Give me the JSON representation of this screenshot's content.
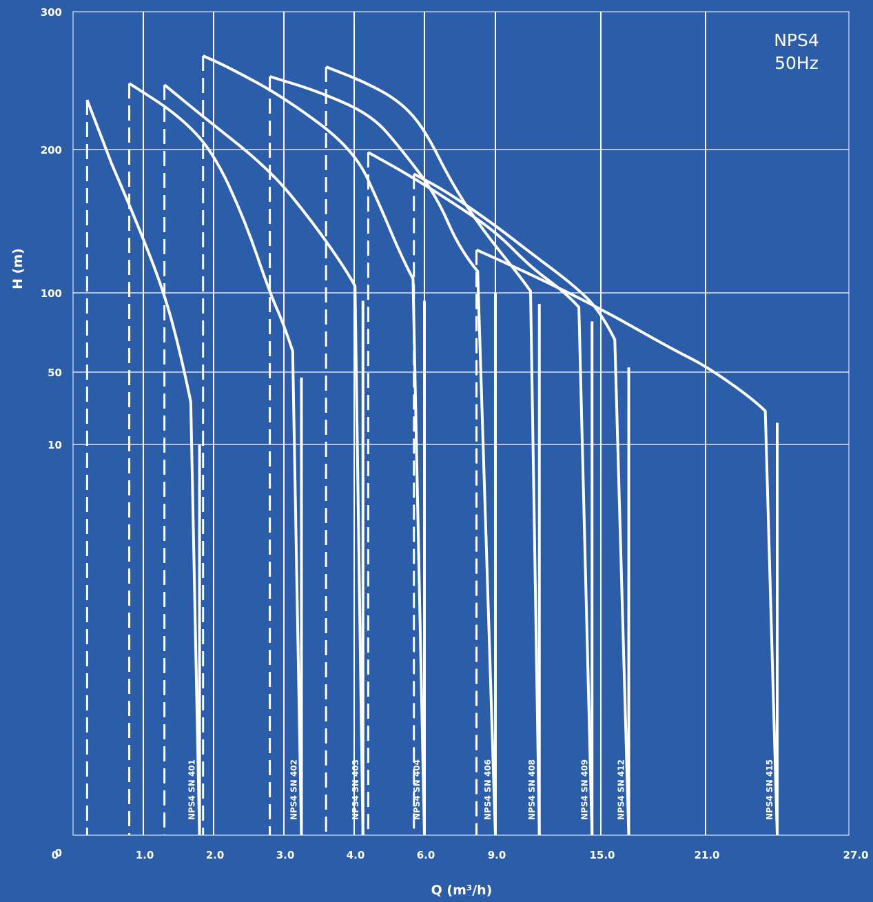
{
  "chart_data": {
    "type": "line",
    "title": "NPS4",
    "subtitle": "50Hz",
    "xlabel": "Q (m³/h)",
    "ylabel": "H (m)",
    "x_ticks": [
      "0",
      "1.0",
      "2.0",
      "3.0",
      "4.0",
      "6.0",
      "9.0",
      "15.0",
      "21.0",
      "27.0"
    ],
    "y_ticks": [
      "0",
      "10",
      "50",
      "100",
      "200",
      "300"
    ],
    "grid": true,
    "colors": {
      "background": "#2c5da9",
      "line": "#ffffff",
      "grid": "#ffffff"
    },
    "series": [
      {
        "name": "NPS4 SN 401",
        "q_range": [
          0.2,
          1.8
        ],
        "points": [
          [
            0.2,
            236
          ],
          [
            0.55,
            190
          ],
          [
            0.55,
            190
          ],
          [
            0.9,
            150
          ],
          [
            1.3,
            100
          ],
          [
            1.55,
            58
          ],
          [
            1.8,
            10
          ],
          [
            1.8,
            0
          ]
        ]
      },
      {
        "name": "NPS4 SN 402",
        "q_range": [
          0.8,
          3.25
        ],
        "points": [
          [
            0.8,
            248
          ],
          [
            1.5,
            225
          ],
          [
            2.0,
            198
          ],
          [
            2.45,
            150
          ],
          [
            2.8,
            100
          ],
          [
            3.0,
            80
          ],
          [
            3.25,
            47
          ],
          [
            3.25,
            0
          ]
        ]
      },
      {
        "name": "NPS4 SN 403",
        "q_range": [
          1.3,
          4.25
        ],
        "points": [
          [
            1.3,
            247
          ],
          [
            1.8,
            226
          ],
          [
            2.8,
            186
          ],
          [
            3.4,
            150
          ],
          [
            3.9,
            115
          ],
          [
            4.25,
            95
          ],
          [
            4.25,
            0
          ]
        ]
      },
      {
        "name": "NPS4 SN 404",
        "q_range": [
          1.85,
          6.0
        ],
        "points": [
          [
            1.85,
            268
          ],
          [
            2.2,
            260
          ],
          [
            3.0,
            238
          ],
          [
            4.0,
            200
          ],
          [
            4.75,
            160
          ],
          [
            5.35,
            125
          ],
          [
            6.0,
            95
          ],
          [
            6.0,
            0
          ]
        ]
      },
      {
        "name": "NPS4 SN 406",
        "q_range": [
          2.8,
          9.0
        ],
        "points": [
          [
            2.8,
            253
          ],
          [
            3.5,
            242
          ],
          [
            4.5,
            225
          ],
          [
            5.35,
            200
          ],
          [
            6.5,
            168
          ],
          [
            7.5,
            130
          ],
          [
            9.0,
            100
          ],
          [
            9.0,
            0
          ]
        ]
      },
      {
        "name": "NPS4 SN 408",
        "q_range": [
          3.6,
          11.5
        ],
        "points": [
          [
            3.6,
            260
          ],
          [
            4.3,
            249
          ],
          [
            5.3,
            235
          ],
          [
            6.0,
            215
          ],
          [
            7.2,
            175
          ],
          [
            8.5,
            143
          ],
          [
            10.5,
            110
          ],
          [
            11.5,
            93
          ],
          [
            11.5,
            0
          ]
        ]
      },
      {
        "name": "NPS4 SN 409",
        "q_range": [
          4.4,
          14.5
        ],
        "points": [
          [
            4.4,
            198
          ],
          [
            5.5,
            183
          ],
          [
            7.0,
            165
          ],
          [
            9.0,
            143
          ],
          [
            11.0,
            118
          ],
          [
            13.0,
            100
          ],
          [
            14.5,
            82
          ],
          [
            14.5,
            0
          ]
        ]
      },
      {
        "name": "NPS4 SN 412",
        "q_range": [
          5.7,
          16.6
        ],
        "points": [
          [
            5.7,
            183
          ],
          [
            7.0,
            170
          ],
          [
            9.0,
            147
          ],
          [
            11.0,
            128
          ],
          [
            13.5,
            105
          ],
          [
            15.0,
            88
          ],
          [
            16.6,
            53
          ],
          [
            16.6,
            0
          ]
        ]
      },
      {
        "name": "NPS4 SN 415",
        "q_range": [
          8.2,
          24.0
        ],
        "points": [
          [
            8.2,
            130
          ],
          [
            11.0,
            113
          ],
          [
            15.0,
            90
          ],
          [
            19.0,
            65
          ],
          [
            21.0,
            54
          ],
          [
            23.0,
            35
          ],
          [
            24.0,
            22
          ],
          [
            24.0,
            0
          ]
        ]
      }
    ]
  }
}
